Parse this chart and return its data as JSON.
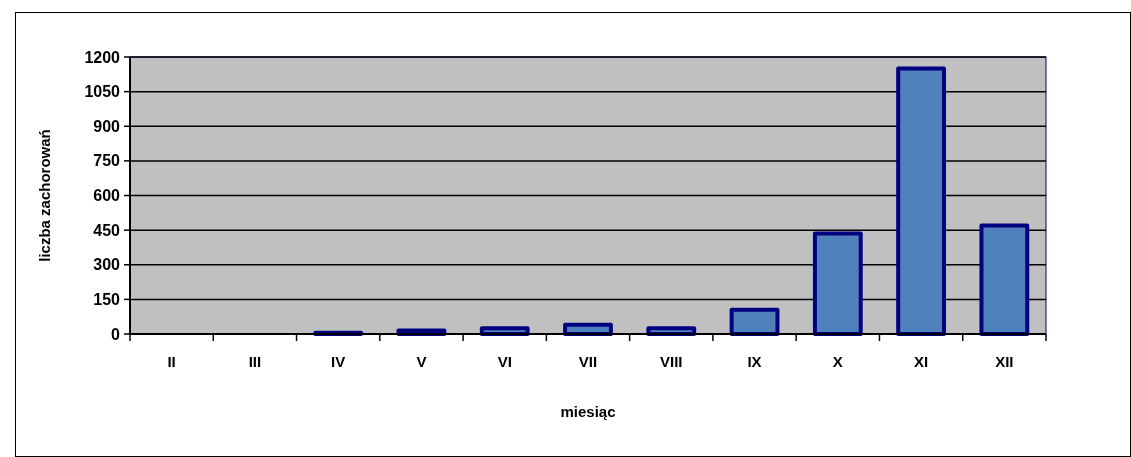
{
  "chart_data": {
    "type": "bar",
    "xlabel": "miesiąc",
    "ylabel": "liczba zachorowań",
    "categories": [
      "II",
      "III",
      "IV",
      "V",
      "VI",
      "VII",
      "VIII",
      "IX",
      "X",
      "XI",
      "XII"
    ],
    "values": [
      0,
      0,
      5,
      15,
      25,
      40,
      25,
      105,
      435,
      1150,
      470
    ],
    "color": "#4f81bd",
    "ylim": [
      0,
      1200
    ],
    "yticks": [
      0,
      150,
      300,
      450,
      600,
      750,
      900,
      1050,
      1200
    ],
    "grid": "y"
  }
}
